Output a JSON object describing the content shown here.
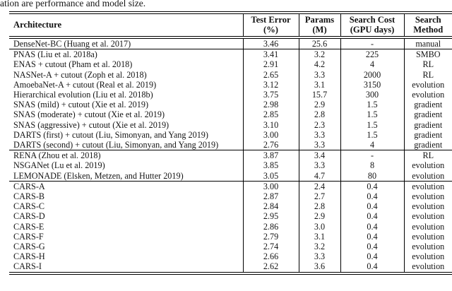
{
  "page": {
    "caption_fragment": "ation are performance and model size.",
    "colors": {
      "background": "#ffffff",
      "text": "#151515",
      "rule": "#000000"
    }
  },
  "table": {
    "columns": [
      {
        "id": "architecture",
        "line1": "Architecture",
        "line2": ""
      },
      {
        "id": "test_error",
        "line1": "Test Error",
        "line2": "(%)"
      },
      {
        "id": "params",
        "line1": "Params",
        "line2": "(M)"
      },
      {
        "id": "search_cost",
        "line1": "Search Cost",
        "line2": "(GPU days)"
      },
      {
        "id": "search_method",
        "line1": "Search",
        "line2": "Method"
      }
    ],
    "groups": [
      {
        "rows": [
          {
            "architecture": "DenseNet-BC (Huang et al. 2017)",
            "test_error": "3.46",
            "params": "25.6",
            "search_cost": "-",
            "search_method": "manual"
          }
        ]
      },
      {
        "rows": [
          {
            "architecture": "PNAS (Liu et al. 2018a)",
            "test_error": "3.41",
            "params": "3.2",
            "search_cost": "225",
            "search_method": "SMBO"
          },
          {
            "architecture": "ENAS + cutout (Pham et al. 2018)",
            "test_error": "2.91",
            "params": "4.2",
            "search_cost": "4",
            "search_method": "RL"
          },
          {
            "architecture": "NASNet-A + cutout (Zoph et al. 2018)",
            "test_error": "2.65",
            "params": "3.3",
            "search_cost": "2000",
            "search_method": "RL"
          },
          {
            "architecture": "AmoebaNet-A + cutout (Real et al. 2019)",
            "test_error": "3.12",
            "params": "3.1",
            "search_cost": "3150",
            "search_method": "evolution"
          },
          {
            "architecture": "Hierarchical evolution (Liu et al. 2018b)",
            "test_error": "3.75",
            "params": "15.7",
            "search_cost": "300",
            "search_method": "evolution"
          },
          {
            "architecture": "SNAS (mild) + cutout (Xie et al. 2019)",
            "test_error": "2.98",
            "params": "2.9",
            "search_cost": "1.5",
            "search_method": "gradient"
          },
          {
            "architecture": "SNAS (moderate) + cutout (Xie et al. 2019)",
            "test_error": "2.85",
            "params": "2.8",
            "search_cost": "1.5",
            "search_method": "gradient"
          },
          {
            "architecture": "SNAS (aggressive) + cutout (Xie et al. 2019)",
            "test_error": "3.10",
            "params": "2.3",
            "search_cost": "1.5",
            "search_method": "gradient"
          },
          {
            "architecture": "DARTS (first) + cutout (Liu, Simonyan, and Yang 2019)",
            "test_error": "3.00",
            "params": "3.3",
            "search_cost": "1.5",
            "search_method": "gradient"
          },
          {
            "architecture": "DARTS (second) + cutout (Liu, Simonyan, and Yang 2019)",
            "test_error": "2.76",
            "params": "3.3",
            "search_cost": "4",
            "search_method": "gradient"
          }
        ]
      },
      {
        "rows": [
          {
            "architecture": "RENA (Zhou et al. 2018)",
            "test_error": "3.87",
            "params": "3.4",
            "search_cost": "-",
            "search_method": "RL"
          },
          {
            "architecture": "NSGANet (Lu et al. 2019)",
            "test_error": "3.85",
            "params": "3.3",
            "search_cost": "8",
            "search_method": "evolution"
          },
          {
            "architecture": "LEMONADE (Elsken, Metzen, and Hutter 2019)",
            "test_error": "3.05",
            "params": "4.7",
            "search_cost": "80",
            "search_method": "evolution"
          }
        ]
      },
      {
        "rows": [
          {
            "architecture": "CARS-A",
            "test_error": "3.00",
            "params": "2.4",
            "search_cost": "0.4",
            "search_method": "evolution"
          },
          {
            "architecture": "CARS-B",
            "test_error": "2.87",
            "params": "2.7",
            "search_cost": "0.4",
            "search_method": "evolution"
          },
          {
            "architecture": "CARS-C",
            "test_error": "2.84",
            "params": "2.8",
            "search_cost": "0.4",
            "search_method": "evolution"
          },
          {
            "architecture": "CARS-D",
            "test_error": "2.95",
            "params": "2.9",
            "search_cost": "0.4",
            "search_method": "evolution"
          },
          {
            "architecture": "CARS-E",
            "test_error": "2.86",
            "params": "3.0",
            "search_cost": "0.4",
            "search_method": "evolution"
          },
          {
            "architecture": "CARS-F",
            "test_error": "2.79",
            "params": "3.1",
            "search_cost": "0.4",
            "search_method": "evolution"
          },
          {
            "architecture": "CARS-G",
            "test_error": "2.74",
            "params": "3.2",
            "search_cost": "0.4",
            "search_method": "evolution"
          },
          {
            "architecture": "CARS-H",
            "test_error": "2.66",
            "params": "3.3",
            "search_cost": "0.4",
            "search_method": "evolution"
          },
          {
            "architecture": "CARS-I",
            "test_error": "2.62",
            "params": "3.6",
            "search_cost": "0.4",
            "search_method": "evolution"
          }
        ]
      }
    ]
  }
}
